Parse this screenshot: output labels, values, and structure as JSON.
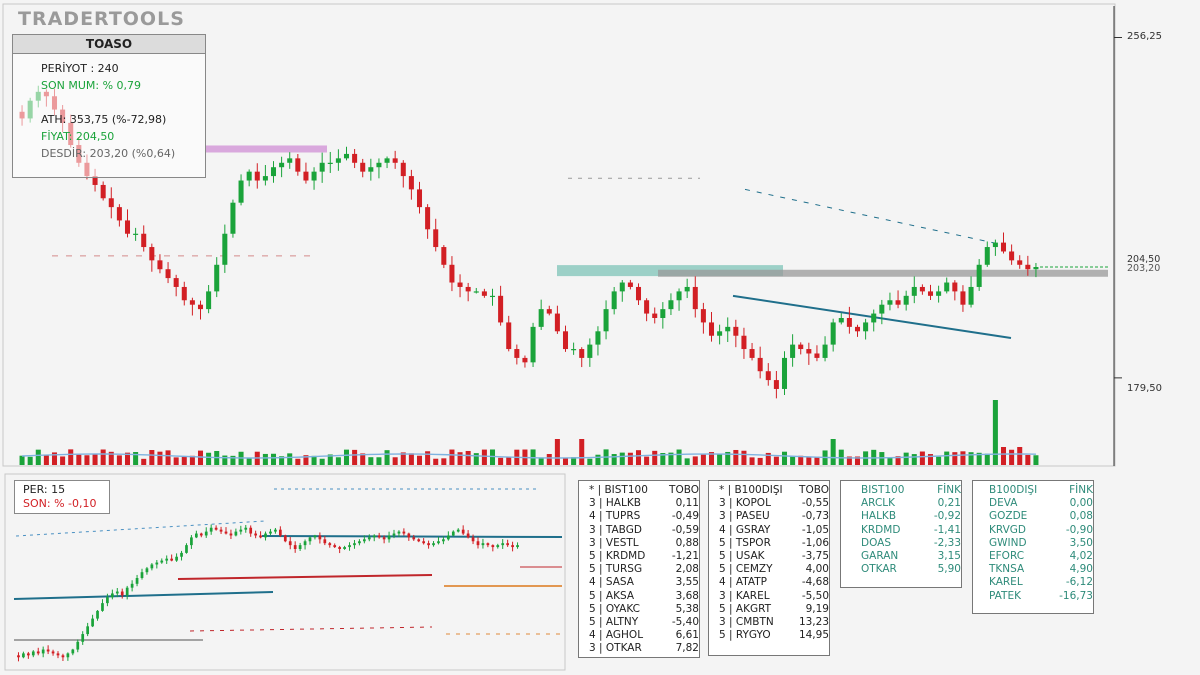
{
  "brand": {
    "logo": "TRADERTOOLS"
  },
  "info": {
    "symbol": "TOASO",
    "period": "PERİYOT : 240",
    "last_candle": "SON MUM: % 0,79",
    "ath": "ATH: 353,75 (%-72,98)",
    "price": "FİYAT: 204,50",
    "support": "DESDİR: 203,20 (%0,64)"
  },
  "mini": {
    "per": "PER: 15",
    "son": "SON: % -0,10"
  },
  "axis": {
    "top_label": "256,25",
    "bottom_label": "179,50",
    "price_tag": "204,50",
    "support_tag": "203,20"
  },
  "colors": {
    "up": "#1aa33a",
    "down": "#d21f24",
    "trend": "#1f6f8b",
    "zone": "#7fc4b8",
    "resist": "#d49ad8"
  },
  "chart_data": [
    {
      "type": "candlestick",
      "title": "TOASO",
      "ylim": [
        170,
        262
      ],
      "y_ticks": [
        256.25,
        179.5
      ],
      "last_price": 204.5,
      "support": 203.2,
      "closes": [
        238,
        242,
        244,
        243,
        240,
        237,
        232,
        228,
        225,
        223,
        220,
        218,
        215,
        212,
        212,
        209,
        206,
        204,
        202,
        200,
        197,
        196,
        195,
        199,
        205,
        212,
        219,
        224,
        226,
        224,
        225,
        227,
        228,
        229,
        226,
        224,
        226,
        228,
        228,
        229,
        230,
        228,
        226,
        227,
        228,
        229,
        228,
        225,
        222,
        218,
        213,
        209,
        205,
        201,
        200,
        199,
        199,
        198,
        198,
        192,
        186,
        184,
        183,
        191,
        195,
        194,
        190,
        186,
        186,
        184,
        187,
        190,
        195,
        199,
        201,
        200,
        197,
        194,
        193,
        195,
        197,
        199,
        200,
        195,
        192,
        189,
        190,
        191,
        189,
        186,
        184,
        181,
        179,
        177,
        184,
        187,
        186,
        185,
        184,
        187,
        192,
        193,
        191,
        190,
        192,
        194,
        196,
        197,
        196,
        198,
        200,
        199,
        198,
        199,
        201,
        199,
        196,
        200,
        205,
        209,
        210,
        208,
        206,
        205,
        204,
        204.5
      ]
    },
    {
      "type": "candlestick",
      "title": "PER: 15",
      "closes": [
        34,
        36,
        35,
        37,
        36,
        38,
        37,
        36,
        35,
        34,
        36,
        38,
        42,
        46,
        50,
        54,
        58,
        62,
        65,
        67,
        68,
        66,
        70,
        72,
        75,
        78,
        80,
        82,
        83,
        84,
        85,
        84,
        86,
        88,
        92,
        96,
        98,
        97,
        99,
        101,
        100,
        99,
        98,
        97,
        99,
        100,
        101,
        98,
        97,
        96,
        98,
        99,
        100,
        97,
        94,
        92,
        90,
        92,
        94,
        96,
        97,
        95,
        93,
        92,
        91,
        90,
        91,
        92,
        93,
        94,
        95,
        96,
        97,
        96,
        95,
        97,
        98,
        99,
        98,
        96,
        95,
        94,
        93,
        92,
        93,
        94,
        95,
        97,
        99,
        100,
        98,
        96,
        94,
        92,
        93,
        92,
        91,
        92,
        93,
        92,
        91,
        92
      ]
    }
  ],
  "tables": [
    {
      "header": [
        "* | BIST100",
        "TOBO"
      ],
      "rows": [
        [
          "3 | HALKB",
          "0,11"
        ],
        [
          "4 | TUPRS",
          "-0,49"
        ],
        [
          "3 | TABGD",
          "-0,59"
        ],
        [
          "3 | VESTL",
          "0,88"
        ],
        [
          "5 | KRDMD",
          "-1,21"
        ],
        [
          "5 | TURSG",
          "2,08"
        ],
        [
          "4 | SASA",
          "3,55"
        ],
        [
          "5 | AKSA",
          "3,68"
        ],
        [
          "5 | OYAKC",
          "5,38"
        ],
        [
          "5 | ALTNY",
          "-5,40"
        ],
        [
          "4 | AGHOL",
          "6,61"
        ],
        [
          "3 | OTKAR",
          "7,82"
        ]
      ]
    },
    {
      "header": [
        "* | B100DIŞI",
        "TOBO"
      ],
      "rows": [
        [
          "3 | KOPOL",
          "-0,55"
        ],
        [
          "3 | PASEU",
          "-0,73"
        ],
        [
          "4 | GSRAY",
          "-1,05"
        ],
        [
          "5 | TSPOR",
          "-1,06"
        ],
        [
          "5 | USAK",
          "-3,75"
        ],
        [
          "5 | CEMZY",
          "4,00"
        ],
        [
          "4 | ATATP",
          "-4,68"
        ],
        [
          "3 | KAREL",
          "-5,50"
        ],
        [
          "5 | AKGRT",
          "9,19"
        ],
        [
          "3 | CMBTN",
          "13,23"
        ],
        [
          "5 | RYGYO",
          "14,95"
        ]
      ]
    },
    {
      "header": [
        "BIST100",
        "FİNK"
      ],
      "rows": [
        [
          "ARCLK",
          "0,21"
        ],
        [
          "HALKB",
          "-0,92"
        ],
        [
          "KRDMD",
          "-1,41"
        ],
        [
          "DOAS",
          "-2,33"
        ],
        [
          "GARAN",
          "3,15"
        ],
        [
          "OTKAR",
          "5,90"
        ]
      ]
    },
    {
      "header": [
        "B100DIŞI",
        "FİNK"
      ],
      "rows": [
        [
          "DEVA",
          "0,00"
        ],
        [
          "GOZDE",
          "0,08"
        ],
        [
          "KRVGD",
          "-0,90"
        ],
        [
          "GWIND",
          "3,50"
        ],
        [
          "EFORC",
          "4,02"
        ],
        [
          "TKNSA",
          "4,90"
        ],
        [
          "KAREL",
          "-6,12"
        ],
        [
          "PATEK",
          "-16,73"
        ]
      ]
    }
  ]
}
